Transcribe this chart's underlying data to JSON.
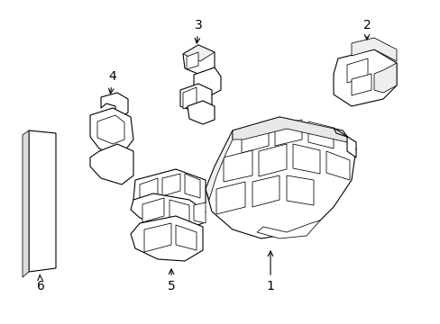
{
  "background_color": "#ffffff",
  "line_color": "#000000",
  "line_width": 0.8,
  "label_fontsize": 10,
  "parts": {
    "part1_label": "1",
    "part2_label": "2",
    "part3_label": "3",
    "part4_label": "4",
    "part5_label": "5",
    "part6_label": "6"
  },
  "figsize": [
    4.89,
    3.6
  ],
  "dpi": 100,
  "xlim": [
    0,
    489
  ],
  "ylim": [
    0,
    360
  ]
}
